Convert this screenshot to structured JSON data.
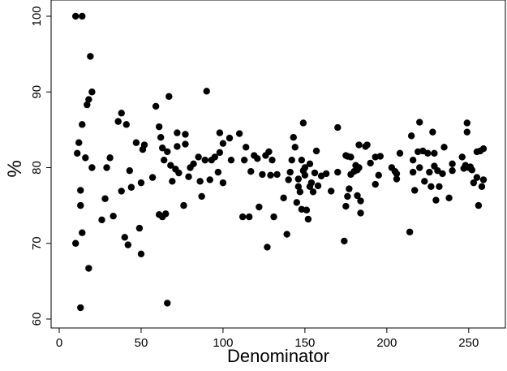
{
  "chart_data": {
    "type": "scatter",
    "title": "",
    "xlabel": "Denominator",
    "ylabel": "%",
    "xlim": [
      0,
      260
    ],
    "ylim": [
      60,
      100
    ],
    "xticks": [
      "0",
      "50",
      "100",
      "150",
      "200",
      "250"
    ],
    "yticks": [
      "60",
      "70",
      "80",
      "90",
      "100"
    ],
    "grid": false,
    "legend": "none",
    "marker_color": "#000000",
    "points": [
      [
        10,
        100
      ],
      [
        14,
        100
      ],
      [
        19,
        94.7
      ],
      [
        20,
        90
      ],
      [
        18,
        89
      ],
      [
        17,
        88.3
      ],
      [
        14,
        85.7
      ],
      [
        16,
        81.3
      ],
      [
        11,
        81.9
      ],
      [
        12,
        83.3
      ],
      [
        20,
        80
      ],
      [
        13,
        77
      ],
      [
        13,
        75
      ],
      [
        14,
        71.4
      ],
      [
        10,
        70
      ],
      [
        18,
        66.7
      ],
      [
        13,
        61.5
      ],
      [
        26,
        73.1
      ],
      [
        28,
        75.9
      ],
      [
        29,
        80
      ],
      [
        31,
        81.3
      ],
      [
        33,
        73.6
      ],
      [
        36,
        86.1
      ],
      [
        38,
        87.2
      ],
      [
        41,
        85.7
      ],
      [
        38,
        76.9
      ],
      [
        40,
        70.8
      ],
      [
        42,
        69.8
      ],
      [
        43,
        79.6
      ],
      [
        44,
        77.4
      ],
      [
        47,
        83.3
      ],
      [
        49,
        72
      ],
      [
        50,
        68.6
      ],
      [
        50,
        78
      ],
      [
        51,
        82.4
      ],
      [
        52,
        83
      ],
      [
        57,
        78.7
      ],
      [
        59,
        88.1
      ],
      [
        61,
        85.4
      ],
      [
        62,
        84
      ],
      [
        61,
        73.8
      ],
      [
        63,
        73.5
      ],
      [
        64,
        81
      ],
      [
        63,
        82.6
      ],
      [
        65,
        73.9
      ],
      [
        66,
        82.1
      ],
      [
        67,
        89.4
      ],
      [
        66,
        62.1
      ],
      [
        68,
        80.3
      ],
      [
        69,
        78.2
      ],
      [
        71,
        79.8
      ],
      [
        72,
        82.8
      ],
      [
        72,
        84.6
      ],
      [
        73,
        79.3
      ],
      [
        76,
        75
      ],
      [
        77,
        83.1
      ],
      [
        77,
        84.4
      ],
      [
        79,
        78.8
      ],
      [
        80,
        80
      ],
      [
        82,
        80.5
      ],
      [
        85,
        81.4
      ],
      [
        86,
        78.2
      ],
      [
        87,
        76.2
      ],
      [
        89,
        81
      ],
      [
        90,
        90.1
      ],
      [
        92,
        78.4
      ],
      [
        93,
        81
      ],
      [
        95,
        81.4
      ],
      [
        97,
        79.4
      ],
      [
        98,
        82
      ],
      [
        98,
        84.6
      ],
      [
        100,
        78
      ],
      [
        100,
        83.2
      ],
      [
        104,
        83.9
      ],
      [
        105,
        81
      ],
      [
        110,
        84.5
      ],
      [
        112,
        73.5
      ],
      [
        113,
        81
      ],
      [
        114,
        82.7
      ],
      [
        116,
        73.5
      ],
      [
        117,
        79.5
      ],
      [
        119,
        81.6
      ],
      [
        121,
        81.2
      ],
      [
        122,
        74.8
      ],
      [
        124,
        79.1
      ],
      [
        126,
        81.6
      ],
      [
        127,
        69.5
      ],
      [
        128,
        82.1
      ],
      [
        129,
        79
      ],
      [
        130,
        81
      ],
      [
        131,
        73.5
      ],
      [
        133,
        79.1
      ],
      [
        137,
        76
      ],
      [
        139,
        71.2
      ],
      [
        140,
        78.4
      ],
      [
        141,
        79.4
      ],
      [
        142,
        81
      ],
      [
        143,
        84
      ],
      [
        144,
        82.7
      ],
      [
        145,
        75.4
      ],
      [
        146,
        77.5
      ],
      [
        146,
        78.5
      ],
      [
        147,
        76.8
      ],
      [
        148,
        74.5
      ],
      [
        148,
        81
      ],
      [
        149,
        85.9
      ],
      [
        150,
        80
      ],
      [
        149,
        79.6
      ],
      [
        150,
        79
      ],
      [
        151,
        74.4
      ],
      [
        152,
        73.2
      ],
      [
        153,
        80.5
      ],
      [
        153,
        77.5
      ],
      [
        154,
        78
      ],
      [
        155,
        76.8
      ],
      [
        156,
        79.3
      ],
      [
        157,
        82.2
      ],
      [
        158,
        77.6
      ],
      [
        160,
        78.9
      ],
      [
        163,
        79.2
      ],
      [
        166,
        76.9
      ],
      [
        170,
        85.3
      ],
      [
        170,
        79.4
      ],
      [
        175,
        81.6
      ],
      [
        174,
        70.3
      ],
      [
        175,
        74.9
      ],
      [
        176,
        76.2
      ],
      [
        176,
        81.5
      ],
      [
        177,
        77.2
      ],
      [
        178,
        79.1
      ],
      [
        178,
        81.4
      ],
      [
        180,
        79.5
      ],
      [
        181,
        80.3
      ],
      [
        182,
        76.3
      ],
      [
        182,
        79.7
      ],
      [
        183,
        80
      ],
      [
        183,
        83
      ],
      [
        184,
        74
      ],
      [
        184,
        75.6
      ],
      [
        187,
        82.8
      ],
      [
        188,
        83
      ],
      [
        190,
        80.6
      ],
      [
        193,
        77.8
      ],
      [
        193,
        81.4
      ],
      [
        195,
        79
      ],
      [
        196,
        81.5
      ],
      [
        203,
        80
      ],
      [
        205,
        79.5
      ],
      [
        206,
        79.2
      ],
      [
        206,
        78.5
      ],
      [
        208,
        81.9
      ],
      [
        214,
        71.5
      ],
      [
        215,
        84.2
      ],
      [
        216,
        81
      ],
      [
        216,
        79.4
      ],
      [
        217,
        77
      ],
      [
        219,
        82.1
      ],
      [
        220,
        86
      ],
      [
        220,
        80
      ],
      [
        222,
        82.2
      ],
      [
        223,
        78.2
      ],
      [
        225,
        81.9
      ],
      [
        226,
        79.4
      ],
      [
        227,
        77.5
      ],
      [
        228,
        84.7
      ],
      [
        229,
        81.9
      ],
      [
        229,
        80.2
      ],
      [
        230,
        75.7
      ],
      [
        231,
        79.6
      ],
      [
        232,
        77.5
      ],
      [
        234,
        79.2
      ],
      [
        235,
        82.7
      ],
      [
        238,
        76
      ],
      [
        240,
        79.6
      ],
      [
        240,
        80.5
      ],
      [
        246,
        81.4
      ],
      [
        247,
        79.9
      ],
      [
        248,
        80.3
      ],
      [
        249,
        85.9
      ],
      [
        249,
        84.7
      ],
      [
        250,
        80
      ],
      [
        251,
        80.1
      ],
      [
        252,
        79.7
      ],
      [
        253,
        78
      ],
      [
        255,
        82.1
      ],
      [
        255,
        78.7
      ],
      [
        256,
        75
      ],
      [
        257,
        82.2
      ],
      [
        258,
        77.5
      ],
      [
        259,
        82.5
      ],
      [
        259,
        78.4
      ]
    ]
  }
}
